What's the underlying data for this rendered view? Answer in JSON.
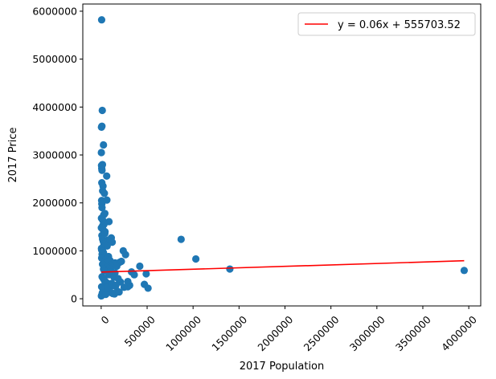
{
  "chart_data": {
    "type": "scatter",
    "xlabel": "2017 Population",
    "ylabel": "2017 Price",
    "xlim": [
      -200000,
      4130000
    ],
    "ylim": [
      -150000,
      6150000
    ],
    "x_ticks": [
      0,
      500000,
      1000000,
      1500000,
      2000000,
      2500000,
      3000000,
      3500000,
      4000000
    ],
    "x_tick_labels": [
      "0",
      "500000",
      "1000000",
      "1500000",
      "2000000",
      "2500000",
      "3000000",
      "3500000",
      "4000000"
    ],
    "x_tick_rotation": 45,
    "y_ticks": [
      0,
      1000000,
      2000000,
      3000000,
      4000000,
      5000000,
      6000000
    ],
    "y_tick_labels": [
      "0",
      "1000000",
      "2000000",
      "3000000",
      "4000000",
      "5000000",
      "6000000"
    ],
    "grid": false,
    "legend_position": "top-right",
    "colors": {
      "points": "#1f77b4",
      "line": "#ff0000"
    },
    "series": [
      {
        "type": "scatter",
        "x": [
          5000,
          12000,
          8000,
          3000,
          25000,
          2000,
          4000,
          6000,
          9000,
          14000,
          7000,
          20000,
          16000,
          35000,
          60000,
          5000,
          7000,
          9000,
          40000,
          28000,
          3000,
          12000,
          62000,
          22000,
          85000,
          30000,
          110000,
          70000,
          15000,
          2000,
          18000,
          42000,
          40000,
          8000,
          15000,
          22000,
          120000,
          30000,
          48000,
          65000,
          3000,
          5000,
          18000,
          25000,
          10000,
          36000,
          80000,
          5000,
          50000,
          95000,
          75000,
          150000,
          15000,
          95000,
          125000,
          60000,
          25000,
          48000,
          35000,
          100000,
          150000,
          90000,
          85000,
          200000,
          170000,
          240000,
          140000,
          220000,
          265000,
          290000,
          330000,
          360000,
          310000,
          290000,
          250000,
          420000,
          470000,
          490000,
          510000,
          870000,
          1030000,
          1400000,
          3950000,
          10000,
          20000,
          30000,
          40000,
          55000,
          70000,
          90000,
          110000,
          130000,
          5000,
          15000,
          25000,
          45000,
          65000,
          85000,
          105000,
          125000,
          145000,
          175000,
          195000,
          35000,
          75000,
          2000,
          8000,
          12000,
          50000,
          115000,
          160000,
          210000,
          185000
        ],
        "y": [
          5820000,
          3930000,
          3600000,
          3580000,
          3210000,
          3050000,
          2780000,
          2720000,
          2680000,
          2800000,
          2420000,
          2350000,
          2250000,
          2200000,
          2560000,
          2050000,
          1980000,
          1900000,
          1780000,
          1750000,
          1680000,
          1660000,
          2060000,
          1620000,
          1610000,
          1550000,
          1270000,
          1220000,
          1520000,
          1480000,
          1450000,
          1400000,
          1360000,
          1320000,
          1250000,
          1200000,
          1180000,
          1140000,
          1120000,
          1100000,
          1050000,
          1020000,
          990000,
          960000,
          930000,
          900000,
          880000,
          850000,
          820000,
          800000,
          770000,
          750000,
          720000,
          700000,
          680000,
          650000,
          620000,
          600000,
          580000,
          560000,
          540000,
          520000,
          500000,
          760000,
          680000,
          1000000,
          450000,
          780000,
          920000,
          360000,
          560000,
          500000,
          280000,
          250000,
          240000,
          680000,
          300000,
          520000,
          220000,
          1240000,
          830000,
          620000,
          590000,
          460000,
          430000,
          400000,
          370000,
          340000,
          320000,
          300000,
          280000,
          270000,
          250000,
          230000,
          210000,
          190000,
          170000,
          150000,
          130000,
          110000,
          100000,
          160000,
          140000,
          200000,
          240000,
          60000,
          80000,
          120000,
          90000,
          320000,
          280000,
          350000,
          420000
        ]
      },
      {
        "type": "line",
        "name": "y = 0.06x + 555703.52",
        "x": [
          0,
          3950000
        ],
        "y": [
          555703.52,
          792703.52
        ]
      }
    ]
  }
}
